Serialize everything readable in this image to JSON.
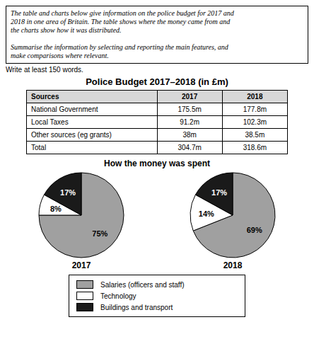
{
  "annotations": [
    "The table and charts below give information on the police budget for 2017 and\n2018 in one area of Britain. The table shows where the money came from and\nthe charts show how it was distributed.\n\nSummarise the information by selecting and reporting the main features, and\nmake comparisons where relevant.",
    "Write at least 150 words."
  ],
  "chart_data": [
    {
      "type": "table",
      "title": "Police Budget 2017–2018 (in £m)",
      "columns": [
        "Sources",
        "2017",
        "2018"
      ],
      "rows": [
        [
          "National Government",
          "175.5m",
          "177.8m"
        ],
        [
          "Local Taxes",
          "91.2m",
          "102.3m"
        ],
        [
          "Other sources (eg grants)",
          "38m",
          "38.5m"
        ],
        [
          "Total",
          "304.7m",
          "318.6m"
        ]
      ]
    },
    {
      "type": "pie",
      "title": "How the money was spent",
      "categories": [
        "Salaries (officers and staff)",
        "Technology",
        "Buildings and transport"
      ],
      "colors": [
        "#a0a0a0",
        "#ffffff",
        "#1a1a1a"
      ],
      "series": [
        {
          "name": "2017",
          "values": [
            75,
            8,
            17
          ],
          "value_labels": [
            "75%",
            "8%",
            "17%"
          ]
        },
        {
          "name": "2018",
          "values": [
            69,
            14,
            17
          ],
          "value_labels": [
            "69%",
            "14%",
            "17%"
          ]
        }
      ],
      "data_labels": true,
      "legend": "bottom"
    }
  ]
}
